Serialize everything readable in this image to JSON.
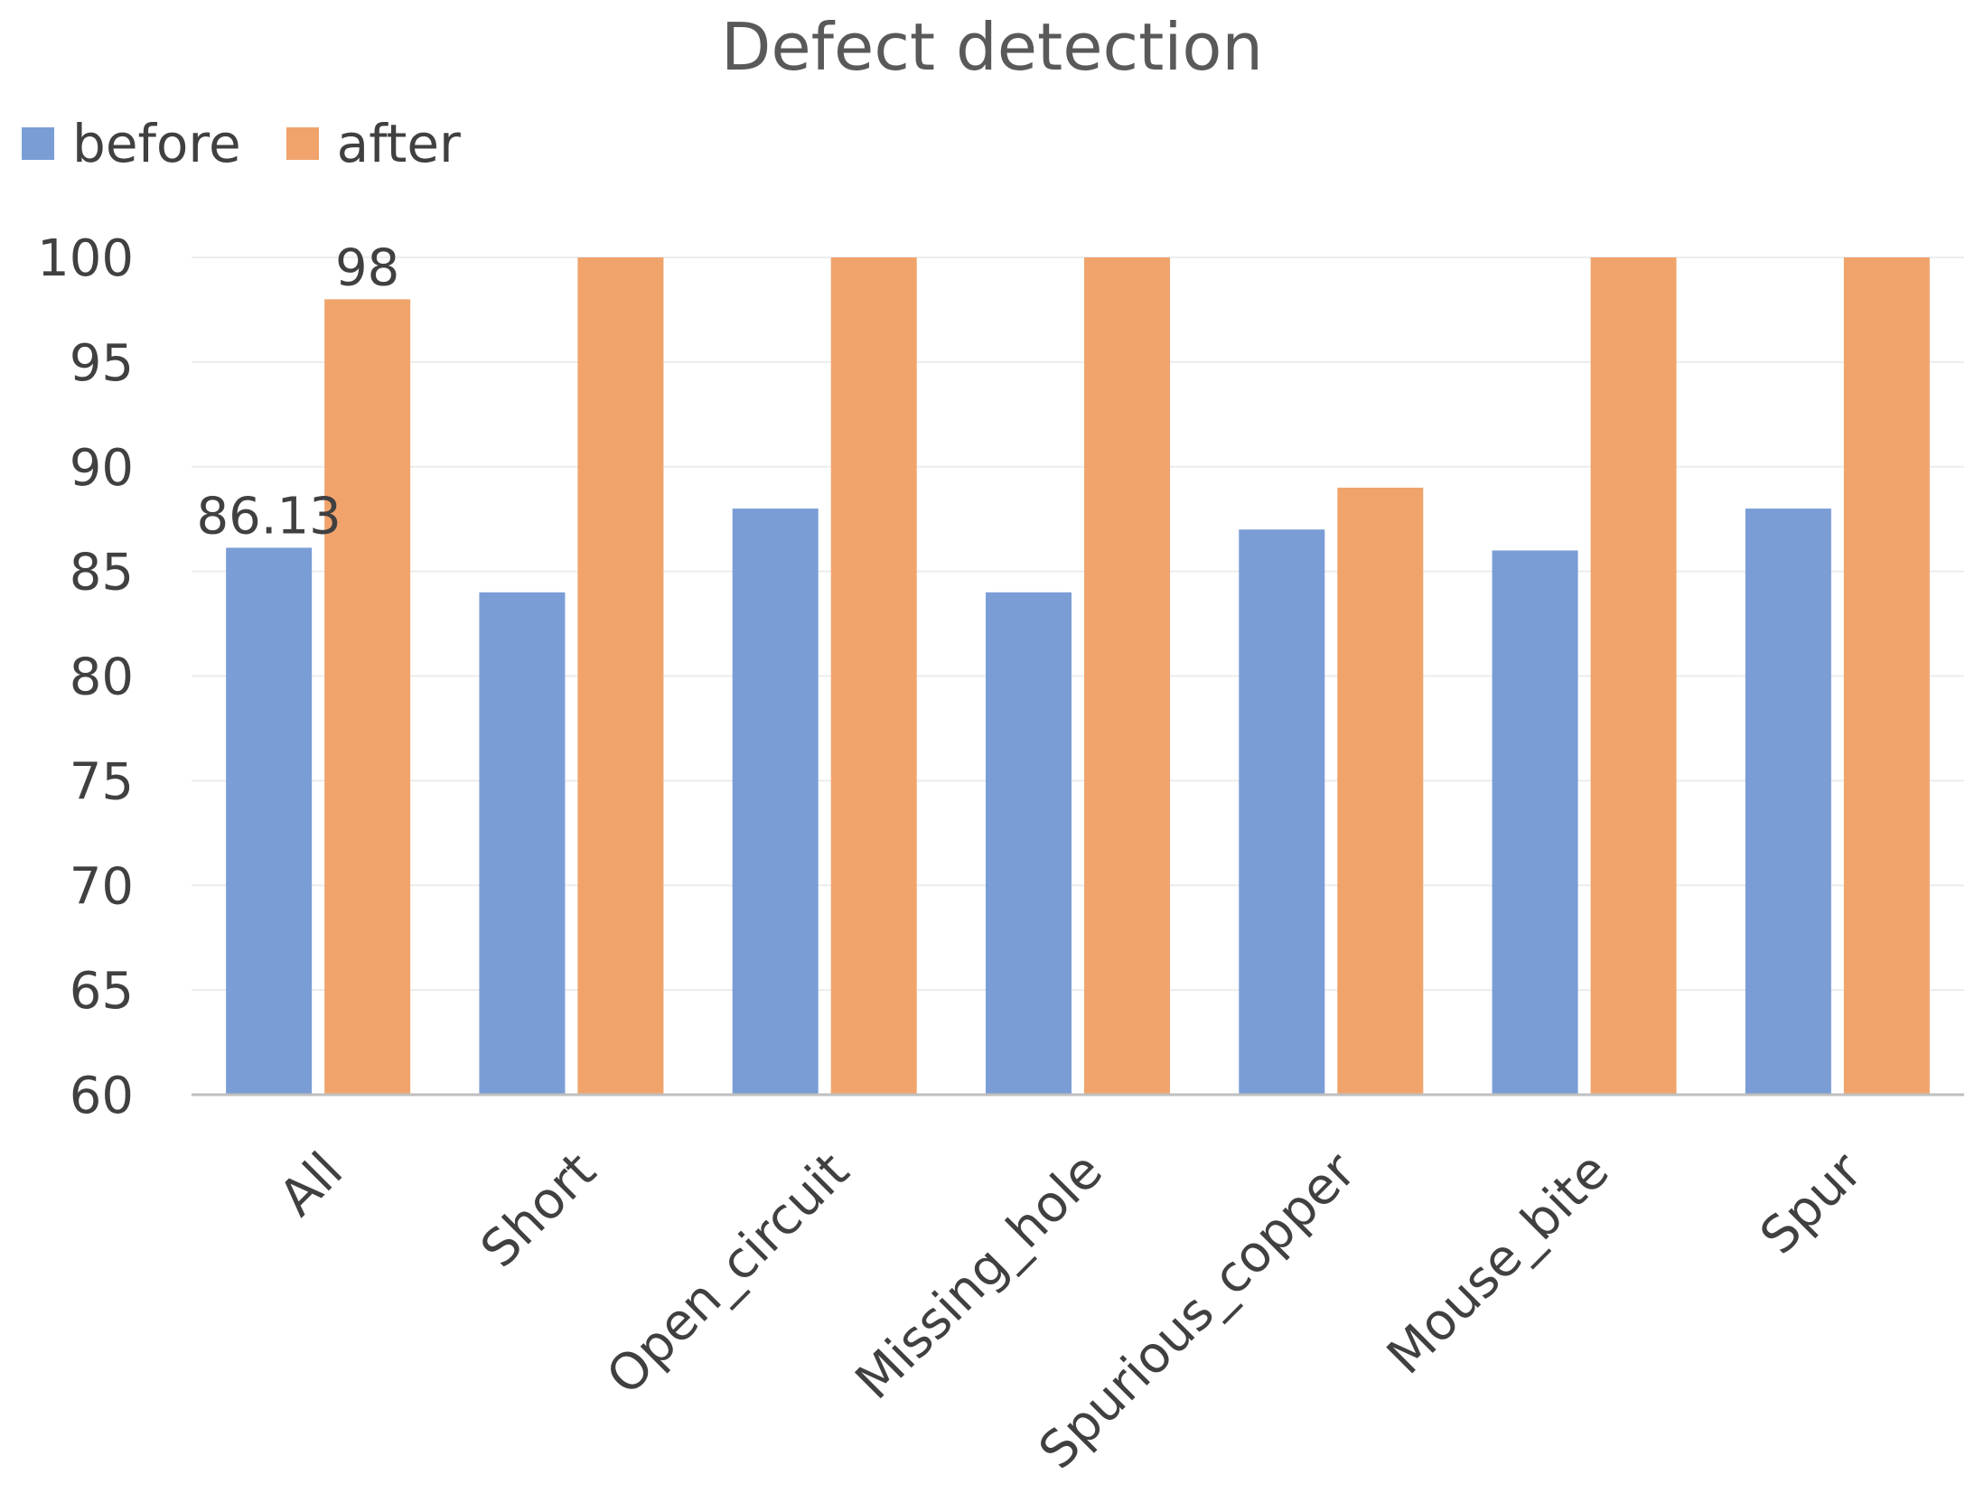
{
  "chart_data": {
    "type": "bar",
    "title": "Defect detection",
    "categories": [
      "All",
      "Short",
      "Open_circuit",
      "Missing_hole",
      "Spurious_copper",
      "Mouse_bite",
      "Spur"
    ],
    "series": [
      {
        "name": "before",
        "color": "#7b9dd6",
        "values": [
          86.13,
          84,
          88,
          84,
          87,
          86,
          88
        ]
      },
      {
        "name": "after",
        "color": "#f0a46c",
        "values": [
          98,
          100,
          100,
          100,
          89,
          100,
          100
        ]
      }
    ],
    "ylim": [
      60,
      100
    ],
    "yticks": [
      60,
      65,
      70,
      75,
      80,
      85,
      90,
      95,
      100
    ],
    "xlabel": "",
    "ylabel": "",
    "grid": true,
    "legend_position": "top-left",
    "data_labels": [
      {
        "series": 0,
        "index": 0,
        "text": "86.13"
      },
      {
        "series": 1,
        "index": 0,
        "text": "98"
      }
    ]
  }
}
